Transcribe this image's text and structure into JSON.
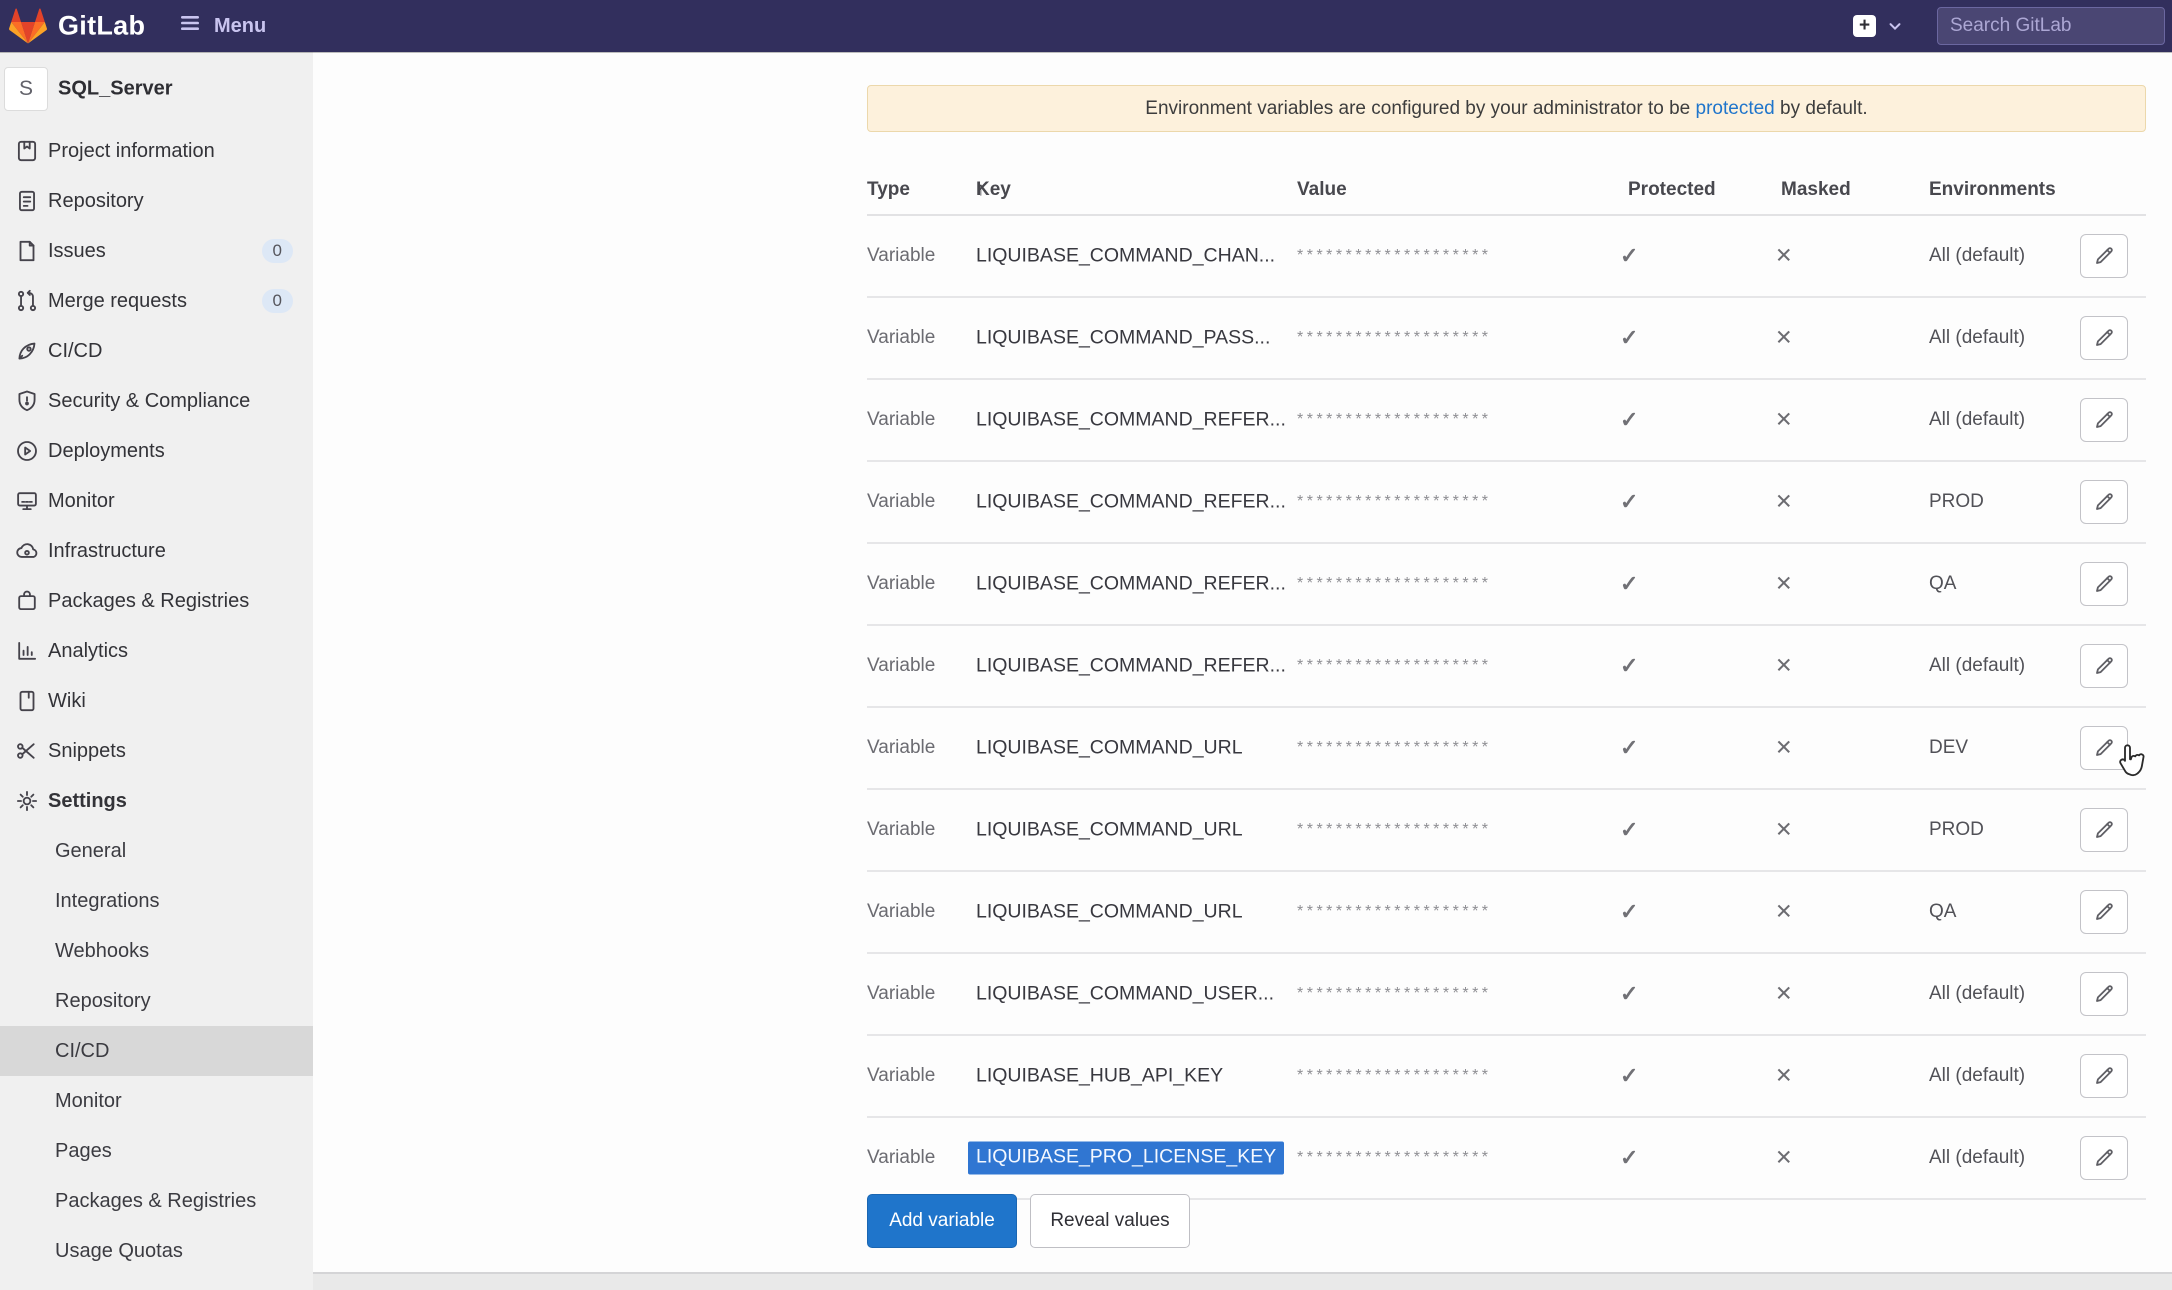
{
  "theme": {
    "navbar_bg": "#322f5d",
    "navbar_text": "#ffffff",
    "navbar_muted": "#c9c4ef",
    "sidebar_bg": "#f0f0f0",
    "sidebar_active_bg": "#d8d8d8",
    "badge_bg": "#dde8f6",
    "banner_bg": "#fdf1dc",
    "banner_border": "#ecd8ab",
    "link_blue": "#1f75cb",
    "accent_blue": "#1f75cb",
    "selection_bg": "#3076d2",
    "divider": "#e6e6e8"
  },
  "navbar": {
    "brand": "GitLab",
    "menu_label": "Menu",
    "search_placeholder": "Search GitLab"
  },
  "sidebar": {
    "project": {
      "avatar_letter": "S",
      "name": "SQL_Server"
    },
    "items": [
      {
        "label": "Project information",
        "icon": "clipboard-icon"
      },
      {
        "label": "Repository",
        "icon": "document-icon"
      },
      {
        "label": "Issues",
        "icon": "issues-icon",
        "badge": "0"
      },
      {
        "label": "Merge requests",
        "icon": "branch-icon",
        "badge": "0"
      },
      {
        "label": "CI/CD",
        "icon": "rocket-icon"
      },
      {
        "label": "Security & Compliance",
        "icon": "shield-icon"
      },
      {
        "label": "Deployments",
        "icon": "deploy-circle-icon"
      },
      {
        "label": "Monitor",
        "icon": "monitor-icon"
      },
      {
        "label": "Infrastructure",
        "icon": "cloud-gear-icon"
      },
      {
        "label": "Packages & Registries",
        "icon": "package-icon"
      },
      {
        "label": "Analytics",
        "icon": "bar-chart-icon"
      },
      {
        "label": "Wiki",
        "icon": "wiki-page-icon"
      },
      {
        "label": "Snippets",
        "icon": "scissors-icon"
      },
      {
        "label": "Settings",
        "icon": "gear-icon",
        "bold": true
      }
    ],
    "settings_subitems": [
      {
        "label": "General"
      },
      {
        "label": "Integrations"
      },
      {
        "label": "Webhooks"
      },
      {
        "label": "Repository"
      },
      {
        "label": "CI/CD",
        "active": true
      },
      {
        "label": "Monitor"
      },
      {
        "label": "Pages"
      },
      {
        "label": "Packages & Registries"
      },
      {
        "label": "Usage Quotas"
      }
    ]
  },
  "main": {
    "alert": {
      "text_before": "Environment variables are configured by your administrator to be ",
      "link_text": "protected",
      "text_after": " by default."
    },
    "table": {
      "columns": [
        "Type",
        "Key",
        "Value",
        "Protected",
        "Masked",
        "Environments"
      ],
      "sort_glyph": "↑",
      "masked_value": "********************",
      "protected_glyph": "✓",
      "masked_glyph": "✕",
      "rows": [
        {
          "type": "Variable",
          "key": "LIQUIBASE_COMMAND_CHAN...",
          "environments": "All (default)"
        },
        {
          "type": "Variable",
          "key": "LIQUIBASE_COMMAND_PASS...",
          "environments": "All (default)"
        },
        {
          "type": "Variable",
          "key": "LIQUIBASE_COMMAND_REFER...",
          "environments": "All (default)"
        },
        {
          "type": "Variable",
          "key": "LIQUIBASE_COMMAND_REFER...",
          "environments": "PROD"
        },
        {
          "type": "Variable",
          "key": "LIQUIBASE_COMMAND_REFER...",
          "environments": "QA"
        },
        {
          "type": "Variable",
          "key": "LIQUIBASE_COMMAND_REFER...",
          "environments": "All (default)"
        },
        {
          "type": "Variable",
          "key": "LIQUIBASE_COMMAND_URL",
          "environments": "DEV"
        },
        {
          "type": "Variable",
          "key": "LIQUIBASE_COMMAND_URL",
          "environments": "PROD"
        },
        {
          "type": "Variable",
          "key": "LIQUIBASE_COMMAND_URL",
          "environments": "QA"
        },
        {
          "type": "Variable",
          "key": "LIQUIBASE_COMMAND_USER...",
          "environments": "All (default)"
        },
        {
          "type": "Variable",
          "key": "LIQUIBASE_HUB_API_KEY",
          "environments": "All (default)"
        },
        {
          "type": "Variable",
          "key": "LIQUIBASE_PRO_LICENSE_KEY",
          "environments": "All (default)",
          "selected": true
        }
      ]
    },
    "buttons": {
      "add_variable": "Add variable",
      "reveal_values": "Reveal values"
    }
  }
}
